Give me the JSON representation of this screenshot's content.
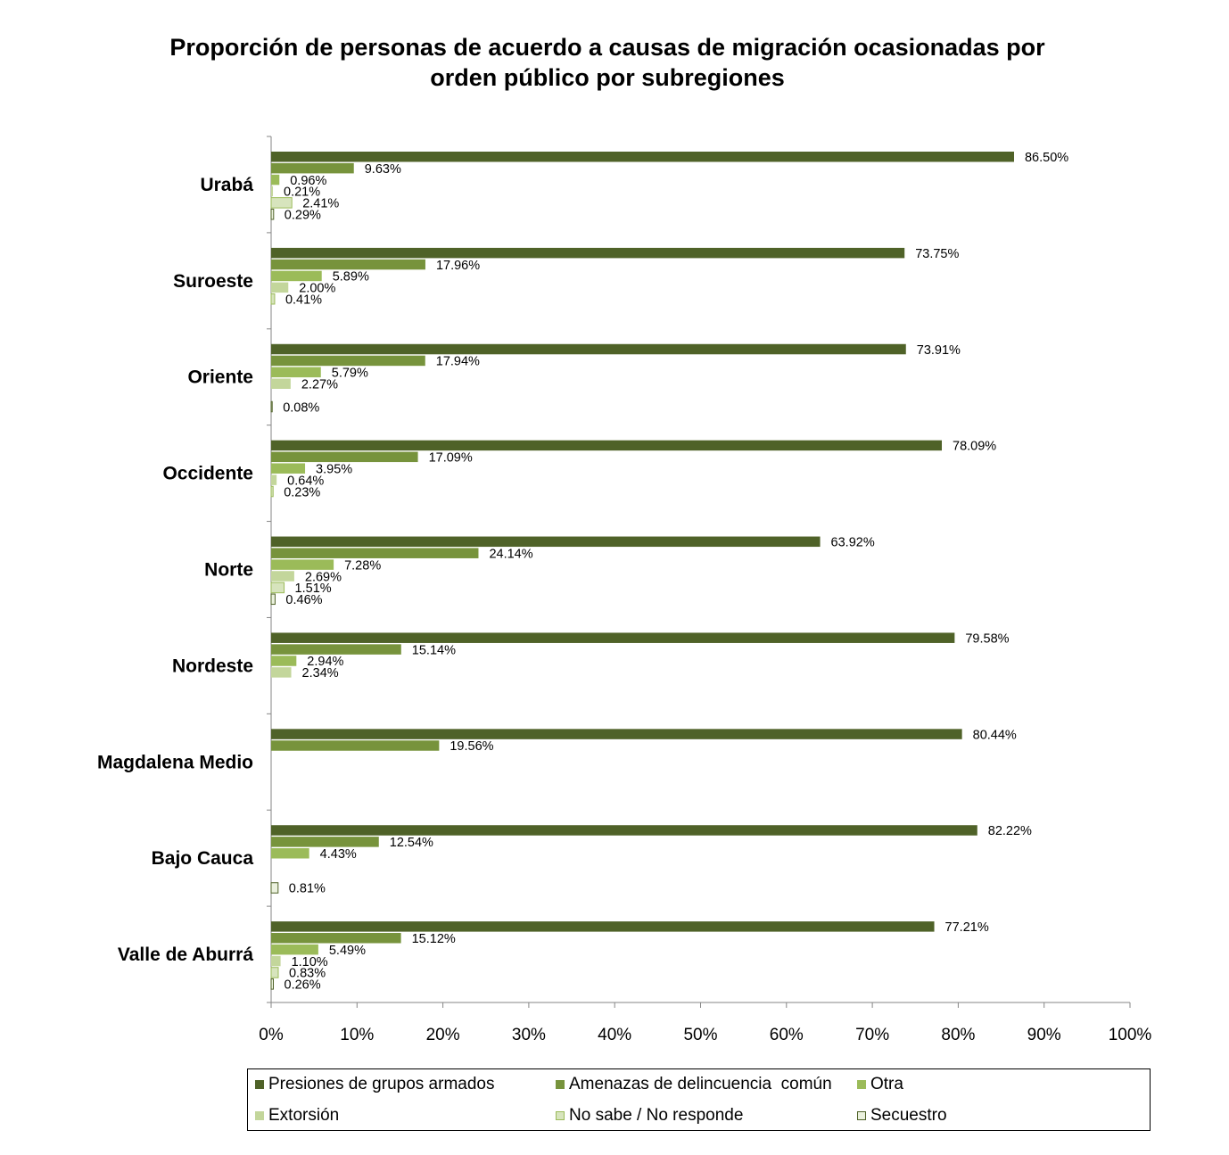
{
  "chart_data": {
    "type": "bar",
    "orientation": "horizontal",
    "title": [
      "Proporción de personas de acuerdo a causas de migración ocasionadas por",
      "orden público por subregiones"
    ],
    "xlim": [
      0,
      100
    ],
    "x_ticks": [
      "0%",
      "10%",
      "20%",
      "30%",
      "40%",
      "50%",
      "60%",
      "70%",
      "80%",
      "90%",
      "100%"
    ],
    "grid": false,
    "legend_position": "bottom",
    "categories": [
      "Urabá",
      "Suroeste",
      "Oriente",
      "Occidente",
      "Norte",
      "Nordeste",
      "Magdalena Medio",
      "Bajo Cauca",
      "Valle de Aburrá"
    ],
    "series": [
      {
        "name": "Presiones de grupos armados",
        "color": "#4f6228",
        "border": "#4f6228",
        "values": [
          86.5,
          73.75,
          73.91,
          78.09,
          63.92,
          79.58,
          80.44,
          82.22,
          77.21
        ],
        "labels": [
          "86.50%",
          "73.75%",
          "73.91%",
          "78.09%",
          "63.92%",
          "79.58%",
          "80.44%",
          "82.22%",
          "77.21%"
        ]
      },
      {
        "name": "Amenazas de delincuencia  común",
        "color": "#77933c",
        "border": "#77933c",
        "values": [
          9.63,
          17.96,
          17.94,
          17.09,
          24.14,
          15.14,
          19.56,
          12.54,
          15.12
        ],
        "labels": [
          "9.63%",
          "17.96%",
          "17.94%",
          "17.09%",
          "24.14%",
          "15.14%",
          "19.56%",
          "12.54%",
          "15.12%"
        ]
      },
      {
        "name": "Otra",
        "color": "#9bbb59",
        "border": "#9bbb59",
        "values": [
          0.96,
          5.89,
          5.79,
          3.95,
          7.28,
          2.94,
          null,
          4.43,
          5.49
        ],
        "labels": [
          "0.96%",
          "5.89%",
          "5.79%",
          "3.95%",
          "7.28%",
          "2.94%",
          "",
          "4.43%",
          "5.49%"
        ]
      },
      {
        "name": "Extorsión",
        "color": "#c3d69b",
        "border": "#c3d69b",
        "values": [
          0.21,
          2.0,
          2.27,
          0.64,
          2.69,
          2.34,
          null,
          null,
          1.1
        ],
        "labels": [
          "0.21%",
          "2.00%",
          "2.27%",
          "0.64%",
          "2.69%",
          "2.34%",
          "",
          "",
          "1.10%"
        ]
      },
      {
        "name": "No sabe / No responde",
        "color": "#d7e4bd",
        "border": "#9bbb59",
        "values": [
          2.41,
          0.41,
          null,
          0.23,
          1.51,
          null,
          null,
          null,
          0.83
        ],
        "labels": [
          "2.41%",
          "0.41%",
          "",
          "0.23%",
          "1.51%",
          "",
          "",
          "",
          "0.83%"
        ]
      },
      {
        "name": "Secuestro",
        "color": "#ebf1de",
        "border": "#4f6228",
        "values": [
          0.29,
          null,
          0.08,
          null,
          0.46,
          null,
          null,
          0.81,
          0.26
        ],
        "labels": [
          "0.29%",
          "",
          "0.08%",
          "",
          "0.46%",
          "",
          "",
          "0.81%",
          "0.26%"
        ]
      }
    ]
  }
}
